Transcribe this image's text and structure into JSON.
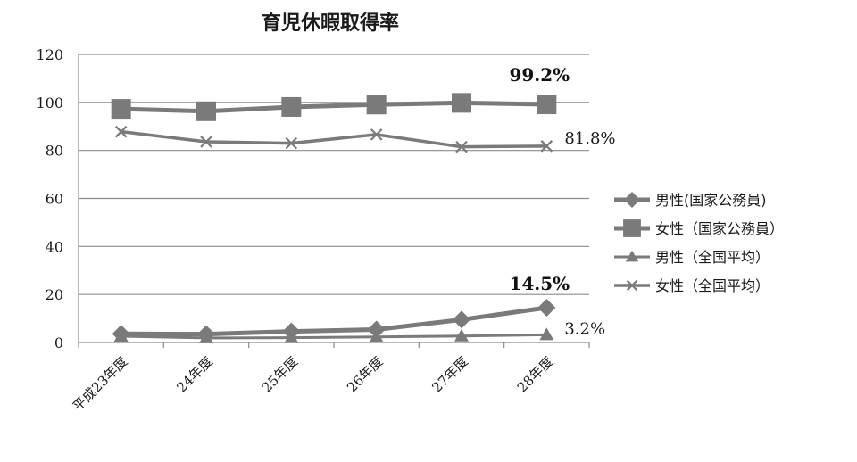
{
  "chart_data": {
    "type": "line",
    "title": "育児休暇取得率",
    "categories": [
      "平成23年度",
      "24年度",
      "25年度",
      "26年度",
      "27年度",
      "28年度"
    ],
    "ylim": [
      0,
      120
    ],
    "yticks": [
      0,
      20,
      40,
      60,
      80,
      100,
      120
    ],
    "grid": true,
    "legend_position": "right",
    "series": [
      {
        "name": "男性(国家公務員)",
        "marker": "diamond",
        "values": [
          3.6,
          3.5,
          4.6,
          5.4,
          9.5,
          14.5
        ]
      },
      {
        "name": "女性（国家公務員）",
        "marker": "square",
        "values": [
          97.3,
          96.3,
          98.1,
          99.1,
          99.8,
          99.2
        ]
      },
      {
        "name": "男性（全国平均）",
        "marker": "triangle",
        "values": [
          2.6,
          1.9,
          2.0,
          2.3,
          2.7,
          3.2
        ]
      },
      {
        "name": "女性（全国平均）",
        "marker": "cross",
        "values": [
          87.8,
          83.6,
          83.0,
          86.6,
          81.5,
          81.8
        ]
      }
    ],
    "annotations": [
      {
        "text": "99.2%",
        "series": 1,
        "point": 5,
        "bold": true
      },
      {
        "text": "81.8%",
        "series": 3,
        "point": 5,
        "bold": false
      },
      {
        "text": "14.5%",
        "series": 0,
        "point": 5,
        "bold": true
      },
      {
        "text": "3.2%",
        "series": 2,
        "point": 5,
        "bold": false
      }
    ],
    "colors": {
      "line": "#7a7a7a",
      "grid": "#8c8c8c",
      "axis": "#8c8c8c"
    }
  }
}
